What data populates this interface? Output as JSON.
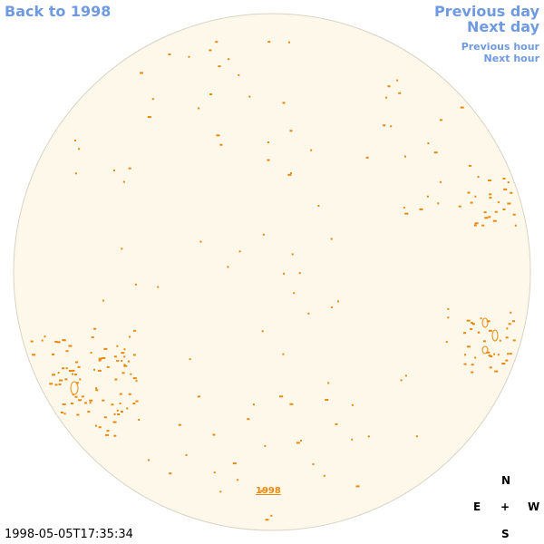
{
  "nav": {
    "back": "Back to 1998",
    "previous_day": "Previous day",
    "next_day": "Next day",
    "previous_hour": "Previous hour",
    "next_hour": "Next hour"
  },
  "disk": {
    "year_label": "1998"
  },
  "compass": {
    "north": "N",
    "east": "E",
    "center": "+",
    "west": "W",
    "south": "S"
  },
  "footer": {
    "timestamp": "1998-05-05T17:35:34"
  }
}
